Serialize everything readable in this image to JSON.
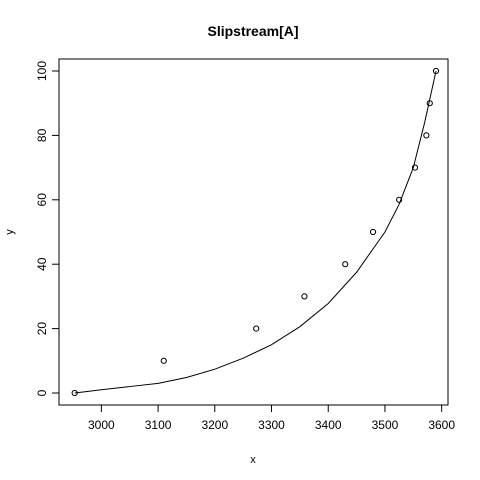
{
  "chart_data": {
    "type": "scatter",
    "title": "Slipstream[A]",
    "xlabel": "x",
    "ylabel": "y",
    "xlim": [
      2950,
      3590
    ],
    "ylim": [
      0,
      100
    ],
    "x_ticks": [
      3000,
      3100,
      3200,
      3300,
      3400,
      3500,
      3600
    ],
    "y_ticks": [
      0,
      20,
      40,
      60,
      80,
      100
    ],
    "grid": false,
    "legend": "none",
    "points": {
      "x": [
        2953,
        3110,
        3273,
        3358,
        3430,
        3479,
        3525,
        3553,
        3573,
        3579,
        3590
      ],
      "y": [
        0,
        10,
        20,
        30,
        40,
        50,
        60,
        70,
        80,
        90,
        100
      ]
    },
    "fit_curve": {
      "type": "exponential",
      "x": [
        2953,
        3000,
        3050,
        3100,
        3150,
        3200,
        3250,
        3300,
        3350,
        3400,
        3450,
        3500,
        3525,
        3550,
        3570,
        3590
      ],
      "y": [
        0,
        1.0,
        2.0,
        3.0,
        4.8,
        7.4,
        10.8,
        15.0,
        20.6,
        27.8,
        37.5,
        50.0,
        58.6,
        70.0,
        84.0,
        100
      ]
    },
    "colors": {
      "points": "#000000",
      "line": "#000000",
      "axes": "#000000"
    }
  }
}
